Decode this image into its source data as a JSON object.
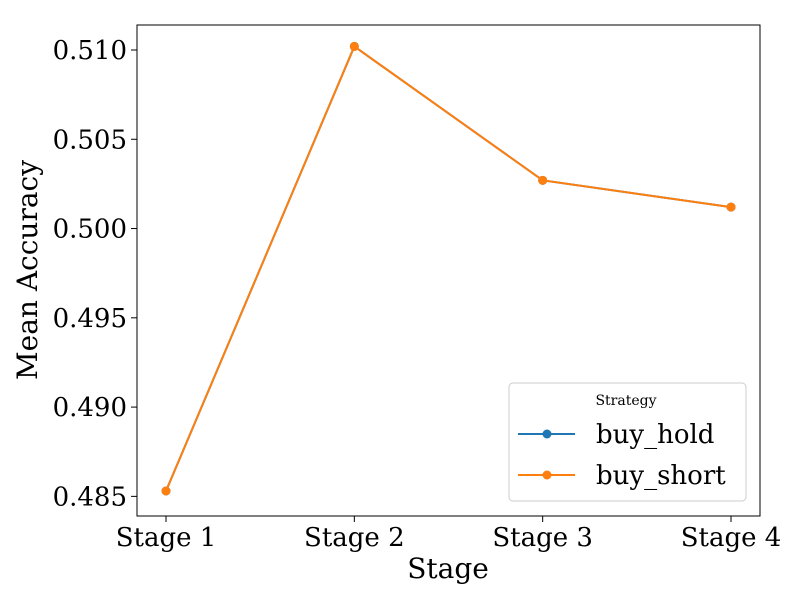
{
  "chart_data": {
    "type": "line",
    "title": "",
    "xlabel": "Stage",
    "ylabel": "Mean Accuracy",
    "categories": [
      "Stage 1",
      "Stage 2",
      "Stage 3",
      "Stage 4"
    ],
    "ylim": [
      0.4839,
      0.5114
    ],
    "yticks": [
      0.485,
      0.49,
      0.495,
      0.5,
      0.505,
      0.51
    ],
    "ytick_labels": [
      "0.485",
      "0.490",
      "0.495",
      "0.500",
      "0.505",
      "0.510"
    ],
    "grid": false,
    "legend": {
      "title": "Strategy",
      "placement": "lower-right"
    },
    "series": [
      {
        "name": "buy_hold",
        "color": "#1f77b4",
        "marker": "circle",
        "values": [
          0.4853,
          0.5102,
          0.5027,
          0.5012
        ]
      },
      {
        "name": "buy_short",
        "color": "#ff7f0e",
        "marker": "circle",
        "values": [
          0.4853,
          0.5102,
          0.5027,
          0.5012
        ]
      }
    ]
  }
}
